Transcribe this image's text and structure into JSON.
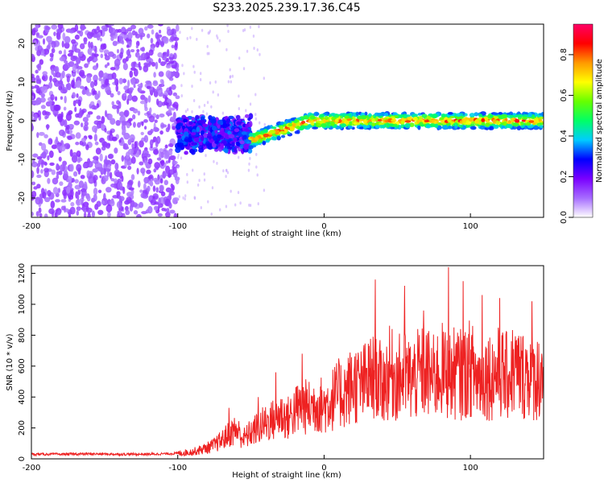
{
  "title": "S233.2025.239.17.36.C45",
  "chart_data": [
    {
      "type": "heatmap",
      "xlabel": "Height of straight line (km)",
      "ylabel": "Frequency (Hz)",
      "xlim": [
        -200,
        150
      ],
      "ylim": [
        -25,
        25
      ],
      "xticks": [
        -200,
        -100,
        0,
        100
      ],
      "xtick_labels": [
        "-200",
        "-100",
        "0",
        "100"
      ],
      "yticks": [
        -20,
        -10,
        0,
        10,
        20
      ],
      "ytick_labels": [
        "-20",
        "-10",
        "0",
        "10",
        "20"
      ],
      "colorbar": {
        "label": "Normalized spectral amplitude",
        "range": [
          0,
          0.95
        ],
        "ticks": [
          0,
          0.2,
          0.4,
          0.6,
          0.8
        ],
        "tick_labels": [
          "0.0",
          "0.2",
          "0.4",
          "0.6",
          "0.8"
        ],
        "colormap": [
          "#ffffff",
          "#a66cff",
          "#7a00ff",
          "#0000ff",
          "#00ccff",
          "#00ff66",
          "#66ff00",
          "#ffff00",
          "#ff9900",
          "#ff0000",
          "#ff0066"
        ]
      },
      "regions": [
        {
          "name": "noise",
          "x_range": [
            -200,
            -100
          ],
          "freq_range": [
            -25,
            25
          ],
          "amplitude": [
            0.05,
            0.2
          ]
        },
        {
          "name": "transition",
          "x_range": [
            -100,
            -50
          ],
          "freq_center": -3.5,
          "freq_spread": 2.5,
          "amplitude": [
            0.15,
            0.35
          ]
        },
        {
          "name": "signal",
          "x_range": [
            -50,
            150
          ],
          "freq_start": -5,
          "freq_end": 0,
          "freq_spread": 1.2,
          "amplitude": [
            0.3,
            0.9
          ]
        }
      ]
    },
    {
      "type": "line",
      "xlabel": "Height of straight line (km)",
      "ylabel": "SNR (10 * v/v)",
      "xlim": [
        -200,
        150
      ],
      "ylim": [
        0,
        1250
      ],
      "xticks": [
        -200,
        -100,
        0,
        100
      ],
      "xtick_labels": [
        "-200",
        "-100",
        "0",
        "100"
      ],
      "yticks": [
        0,
        200,
        400,
        600,
        800,
        1000,
        1200
      ],
      "ytick_labels": [
        "0",
        "200",
        "400",
        "600",
        "800",
        "1000",
        "1200"
      ],
      "line_color": "#ee2222",
      "series": [
        {
          "name": "SNR",
          "x": [
            -200,
            -180,
            -160,
            -140,
            -120,
            -100,
            -90,
            -80,
            -75,
            -70,
            -65,
            -60,
            -55,
            -50,
            -45,
            -40,
            -35,
            -30,
            -25,
            -20,
            -15,
            -10,
            -5,
            0,
            5,
            10,
            15,
            20,
            25,
            30,
            35,
            40,
            45,
            50,
            55,
            60,
            65,
            70,
            75,
            80,
            85,
            90,
            95,
            100,
            105,
            110,
            115,
            120,
            125,
            130,
            135,
            140,
            145,
            150
          ],
          "values": [
            30,
            30,
            32,
            30,
            30,
            35,
            45,
            70,
            90,
            120,
            160,
            190,
            130,
            170,
            200,
            230,
            250,
            290,
            260,
            310,
            340,
            330,
            360,
            340,
            380,
            420,
            430,
            490,
            470,
            510,
            530,
            480,
            560,
            520,
            540,
            510,
            550,
            560,
            520,
            580,
            530,
            560,
            540,
            590,
            520,
            550,
            540,
            560,
            530,
            580,
            540,
            560,
            520,
            570
          ],
          "peaks": [
            [
              -65,
              330
            ],
            [
              -45,
              400
            ],
            [
              -33,
              560
            ],
            [
              -15,
              680
            ],
            [
              35,
              1160
            ],
            [
              55,
              1120
            ],
            [
              68,
              960
            ],
            [
              85,
              1240
            ],
            [
              95,
              1150
            ],
            [
              108,
              1060
            ],
            [
              120,
              1040
            ],
            [
              142,
              1020
            ]
          ]
        }
      ]
    }
  ]
}
